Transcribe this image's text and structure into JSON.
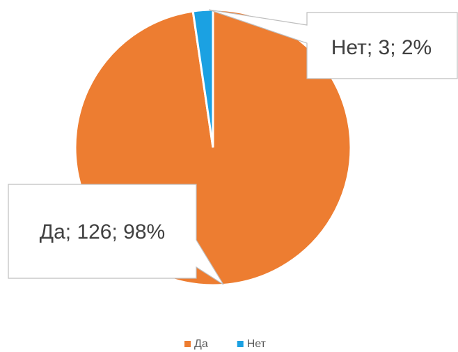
{
  "chart_data": {
    "type": "pie",
    "categories": [
      "Да",
      "Нет"
    ],
    "values": [
      126,
      3
    ],
    "value_labels": [
      "Да; 126; 98%",
      "Нет; 3; 2%"
    ],
    "colors": [
      "#ed7d31",
      "#1ba1e2"
    ],
    "legend": "bottom"
  }
}
